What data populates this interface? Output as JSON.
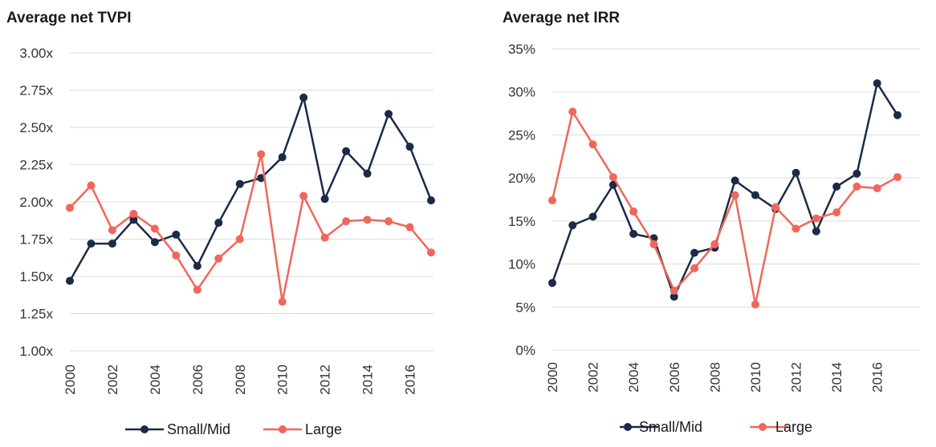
{
  "chart_data": [
    {
      "type": "line",
      "title": "Average net TVPI",
      "x": [
        2000,
        2001,
        2002,
        2003,
        2004,
        2005,
        2006,
        2007,
        2008,
        2009,
        2010,
        2011,
        2012,
        2013,
        2014,
        2015,
        2016,
        2017
      ],
      "ylim": [
        1.0,
        3.0
      ],
      "yticks": [
        1.0,
        1.25,
        1.5,
        1.75,
        2.0,
        2.25,
        2.5,
        2.75,
        3.0
      ],
      "ytick_labels": [
        "1.00x",
        "1.25x",
        "1.50x",
        "1.75x",
        "2.00x",
        "2.25x",
        "2.50x",
        "2.75x",
        "3.00x"
      ],
      "xtick_labels": [
        "2000",
        "2002",
        "2004",
        "2006",
        "2008",
        "2010",
        "2012",
        "2014",
        "2016"
      ],
      "series": [
        {
          "name": "Small/Mid",
          "color": "#1b2a47",
          "values": [
            1.47,
            1.72,
            1.72,
            1.88,
            1.73,
            1.78,
            1.57,
            1.86,
            2.12,
            2.16,
            2.3,
            2.7,
            2.02,
            2.34,
            2.19,
            2.59,
            2.37,
            2.01
          ]
        },
        {
          "name": "Large",
          "color": "#f0675a",
          "values": [
            1.96,
            2.11,
            1.81,
            1.92,
            1.82,
            1.64,
            1.41,
            1.62,
            1.75,
            2.32,
            1.33,
            2.04,
            1.76,
            1.87,
            1.88,
            1.87,
            1.83,
            1.66
          ]
        }
      ]
    },
    {
      "type": "line",
      "title": "Average net IRR",
      "x": [
        2000,
        2001,
        2002,
        2003,
        2004,
        2005,
        2006,
        2007,
        2008,
        2009,
        2010,
        2011,
        2012,
        2013,
        2014,
        2015,
        2016,
        2017
      ],
      "ylim": [
        0,
        35
      ],
      "yticks": [
        0,
        5,
        10,
        15,
        20,
        25,
        30,
        35
      ],
      "ytick_labels": [
        "0%",
        "5%",
        "10%",
        "15%",
        "20%",
        "25%",
        "30%",
        "35%"
      ],
      "xtick_labels": [
        "2000",
        "2002",
        "2004",
        "2006",
        "2008",
        "2010",
        "2012",
        "2014",
        "2016"
      ],
      "series": [
        {
          "name": "Small/Mid",
          "color": "#1b2a47",
          "values": [
            7.8,
            14.5,
            15.5,
            19.2,
            13.5,
            13.0,
            6.2,
            11.3,
            11.9,
            19.7,
            18.0,
            16.4,
            20.6,
            13.8,
            19.0,
            20.5,
            31.0,
            27.3
          ]
        },
        {
          "name": "Large",
          "color": "#f0675a",
          "values": [
            17.4,
            27.7,
            23.9,
            20.1,
            16.1,
            12.3,
            6.9,
            9.5,
            12.3,
            18.0,
            5.3,
            16.6,
            14.1,
            15.3,
            16.0,
            19.0,
            18.8,
            20.1
          ]
        }
      ]
    }
  ]
}
